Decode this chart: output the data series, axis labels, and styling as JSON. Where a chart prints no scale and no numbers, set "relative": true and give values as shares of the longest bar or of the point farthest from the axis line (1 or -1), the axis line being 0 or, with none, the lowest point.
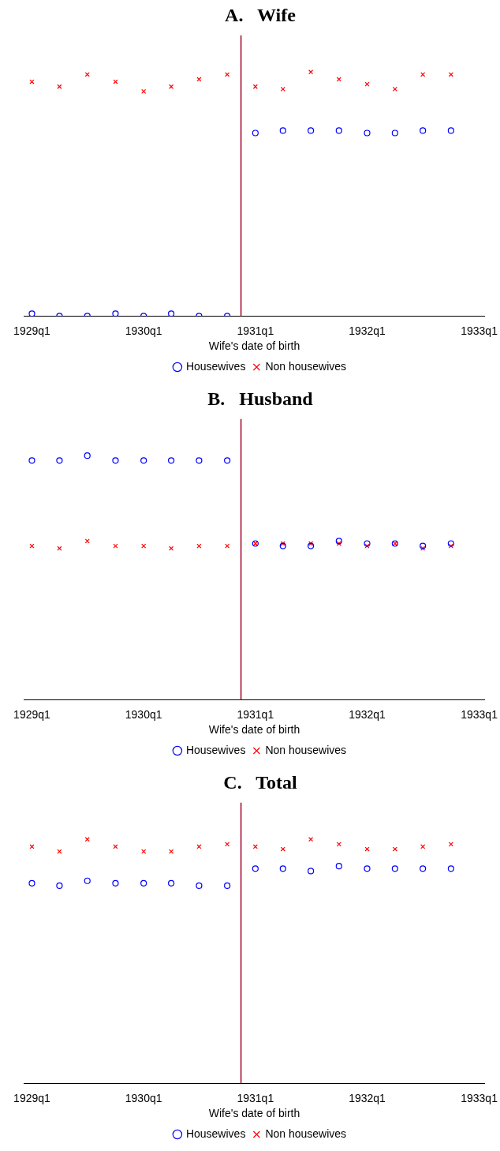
{
  "chart_data": [
    {
      "type": "scatter",
      "title": "A.   Wife",
      "xlabel": "Wife's date of birth",
      "relative": true,
      "legend": "bottom",
      "x": [
        "1929-01",
        "1929-04",
        "1929-07",
        "1929-10",
        "1930-01",
        "1930-04",
        "1930-07",
        "1930-10",
        "1931-01",
        "1931-04",
        "1931-07",
        "1931-10",
        "1932-01",
        "1932-04",
        "1932-07",
        "1932-10"
      ],
      "xlim": [
        "1928-12-05",
        "1933-01-20"
      ],
      "xticks": [
        {
          "value": "1929-01",
          "label": "1929q1"
        },
        {
          "value": "1930-01",
          "label": "1930q1"
        },
        {
          "value": "1931-01",
          "label": "1931q1"
        },
        {
          "value": "1932-01",
          "label": "1932q1"
        },
        {
          "value": "1933-01",
          "label": "1933q1"
        }
      ],
      "ref_lines": [
        {
          "axis": "x",
          "value": "1930-11-15",
          "color": "#a0002a"
        }
      ],
      "series": [
        {
          "name": "Housewives",
          "color": "#0000ff",
          "marker": "circle",
          "values": [
            0.01,
            0,
            0,
            0.01,
            0,
            0.01,
            0,
            0,
            0.75,
            0.76,
            0.76,
            0.76,
            0.75,
            0.75,
            0.76,
            0.76
          ]
        },
        {
          "name": "Non housewives",
          "color": "#ff0000",
          "marker": "cross",
          "values": [
            0.96,
            0.94,
            0.99,
            0.96,
            0.92,
            0.94,
            0.97,
            0.99,
            0.94,
            0.93,
            1,
            0.97,
            0.95,
            0.93,
            0.99,
            0.99
          ]
        }
      ]
    },
    {
      "type": "scatter",
      "title": "B.   Husband",
      "xlabel": "Wife's date of birth",
      "relative": true,
      "legend": "bottom",
      "x": [
        "1929-01",
        "1929-04",
        "1929-07",
        "1929-10",
        "1930-01",
        "1930-04",
        "1930-07",
        "1930-10",
        "1931-01",
        "1931-04",
        "1931-07",
        "1931-10",
        "1932-01",
        "1932-04",
        "1932-07",
        "1932-10"
      ],
      "xlim": [
        "1928-12-05",
        "1933-01-20"
      ],
      "xticks": [
        {
          "value": "1929-01",
          "label": "1929q1"
        },
        {
          "value": "1930-01",
          "label": "1930q1"
        },
        {
          "value": "1931-01",
          "label": "1931q1"
        },
        {
          "value": "1932-01",
          "label": "1932q1"
        },
        {
          "value": "1933-01",
          "label": "1933q1"
        }
      ],
      "ref_lines": [
        {
          "axis": "x",
          "value": "1930-11-15",
          "color": "#a0002a"
        }
      ],
      "series": [
        {
          "name": "Housewives",
          "color": "#0000ff",
          "marker": "circle",
          "values": [
            0.98,
            0.98,
            1,
            0.98,
            0.98,
            0.98,
            0.98,
            0.98,
            0.64,
            0.63,
            0.63,
            0.65,
            0.64,
            0.64,
            0.63,
            0.64
          ]
        },
        {
          "name": "Non housewives",
          "color": "#ff0000",
          "marker": "cross",
          "values": [
            0.63,
            0.62,
            0.65,
            0.63,
            0.63,
            0.62,
            0.63,
            0.63,
            0.64,
            0.64,
            0.64,
            0.64,
            0.63,
            0.64,
            0.62,
            0.63
          ]
        }
      ]
    },
    {
      "type": "scatter",
      "title": "C.   Total",
      "xlabel": "Wife's date of birth",
      "relative": true,
      "legend": "bottom",
      "x": [
        "1929-01",
        "1929-04",
        "1929-07",
        "1929-10",
        "1930-01",
        "1930-04",
        "1930-07",
        "1930-10",
        "1931-01",
        "1931-04",
        "1931-07",
        "1931-10",
        "1932-01",
        "1932-04",
        "1932-07",
        "1932-10"
      ],
      "xlim": [
        "1928-12-05",
        "1933-01-20"
      ],
      "xticks": [
        {
          "value": "1929-01",
          "label": "1929q1"
        },
        {
          "value": "1930-01",
          "label": "1930q1"
        },
        {
          "value": "1931-01",
          "label": "1931q1"
        },
        {
          "value": "1932-01",
          "label": "1932q1"
        },
        {
          "value": "1933-01",
          "label": "1933q1"
        }
      ],
      "ref_lines": [
        {
          "axis": "x",
          "value": "1930-11-15",
          "color": "#a0002a"
        }
      ],
      "series": [
        {
          "name": "Housewives",
          "color": "#0000ff",
          "marker": "circle",
          "values": [
            0.82,
            0.81,
            0.83,
            0.82,
            0.82,
            0.82,
            0.81,
            0.81,
            0.88,
            0.88,
            0.87,
            0.89,
            0.88,
            0.88,
            0.88,
            0.88
          ]
        },
        {
          "name": "Non housewives",
          "color": "#ff0000",
          "marker": "cross",
          "values": [
            0.97,
            0.95,
            1,
            0.97,
            0.95,
            0.95,
            0.97,
            0.98,
            0.97,
            0.96,
            1,
            0.98,
            0.96,
            0.96,
            0.97,
            0.98
          ]
        }
      ]
    }
  ]
}
